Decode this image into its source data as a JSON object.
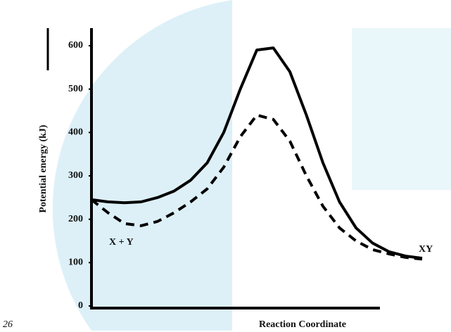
{
  "chart_data": {
    "type": "line",
    "y_label": "Potential energy (kJ)",
    "x_label": "Reaction Coordinate",
    "x": [
      0,
      0.5,
      1,
      1.5,
      2,
      2.5,
      3,
      3.5,
      4,
      4.5,
      5,
      5.5,
      6,
      6.5,
      7,
      7.5,
      8,
      8.5,
      9,
      9.5,
      10
    ],
    "series": [
      {
        "color": "#000000",
        "dash": false,
        "values": [
          245,
          240,
          238,
          240,
          250,
          265,
          290,
          330,
          400,
          500,
          590,
          595,
          540,
          440,
          330,
          240,
          180,
          145,
          125,
          115,
          110
        ]
      },
      {
        "color": "#000000",
        "dash": true,
        "values": [
          245,
          215,
          190,
          185,
          195,
          215,
          240,
          270,
          320,
          390,
          440,
          430,
          380,
          300,
          230,
          180,
          150,
          130,
          120,
          112,
          108
        ]
      }
    ],
    "annotations": [
      "X + Y",
      "XY"
    ],
    "page_number": "26",
    "xlim": [
      0,
      10
    ],
    "ylim": [
      0,
      600
    ],
    "yticks": [
      0,
      100,
      200,
      300,
      400,
      500,
      600
    ]
  }
}
